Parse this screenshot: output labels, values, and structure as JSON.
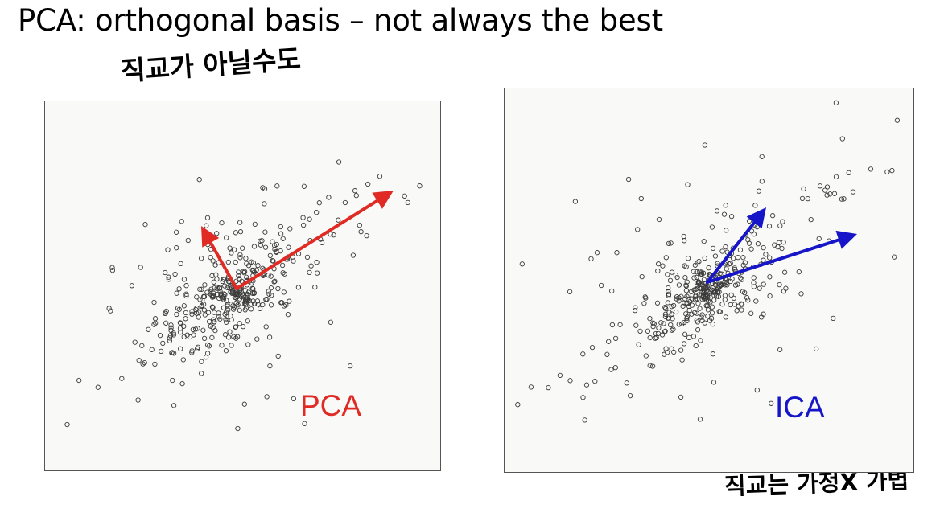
{
  "title": "PCA: orthogonal basis – not always the best",
  "annotations": {
    "top": "직교가 아닐수도",
    "bottom": "직교는 가정X 가볍"
  },
  "panels": [
    {
      "label": "PCA",
      "label_color": "#e02a24",
      "arrow_color": "#e02a24",
      "point_color": "#3a3a3a"
    },
    {
      "label": "ICA",
      "label_color": "#1616c8",
      "arrow_color": "#1616c8",
      "point_color": "#3a3a3a"
    }
  ]
}
